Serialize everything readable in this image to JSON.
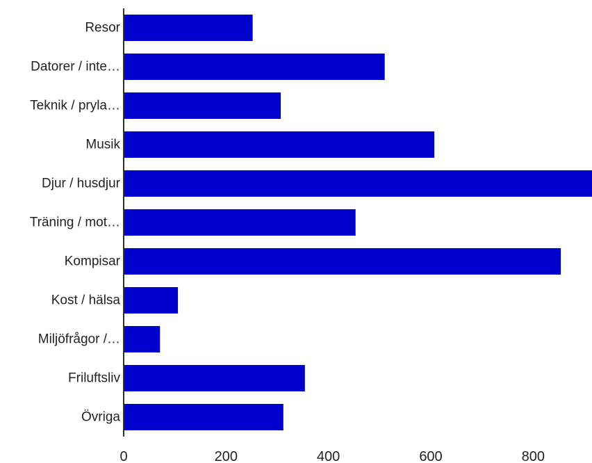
{
  "chart_data": {
    "type": "bar",
    "orientation": "horizontal",
    "categories": [
      "Resor",
      "Datorer / inte…",
      "Teknik / pryla…",
      "Musik",
      "Djur / husdjur",
      "Träning / mot…",
      "Kompisar",
      "Kost / hälsa",
      "Miljöfrågor /…",
      "Friluftsliv",
      "Övriga"
    ],
    "values": [
      252,
      510,
      307,
      607,
      915,
      453,
      854,
      106,
      71,
      354,
      312
    ],
    "xlim": [
      0,
      915
    ],
    "xticks": [
      0,
      200,
      400,
      600,
      800
    ],
    "xtick_labels": [
      "0",
      "200",
      "400",
      "600",
      "800"
    ],
    "title": "",
    "xlabel": "",
    "ylabel": "",
    "grid": false,
    "bar_color": "#0000cc",
    "axis_color": "#333333"
  }
}
